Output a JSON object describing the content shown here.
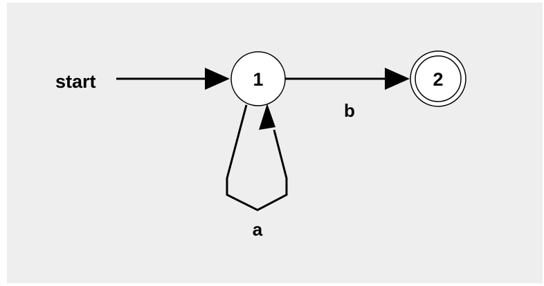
{
  "diagram": {
    "start_label": "start",
    "states": [
      {
        "label": "1",
        "accepting": false,
        "initial": true
      },
      {
        "label": "2",
        "accepting": true,
        "initial": false
      }
    ],
    "transitions": [
      {
        "from": "1",
        "to": "2",
        "symbol": "b"
      },
      {
        "from": "1",
        "to": "1",
        "symbol": "a"
      }
    ]
  },
  "colors": {
    "background": "#eeeeee",
    "stroke": "#000000",
    "node_fill": "#ffffff"
  }
}
